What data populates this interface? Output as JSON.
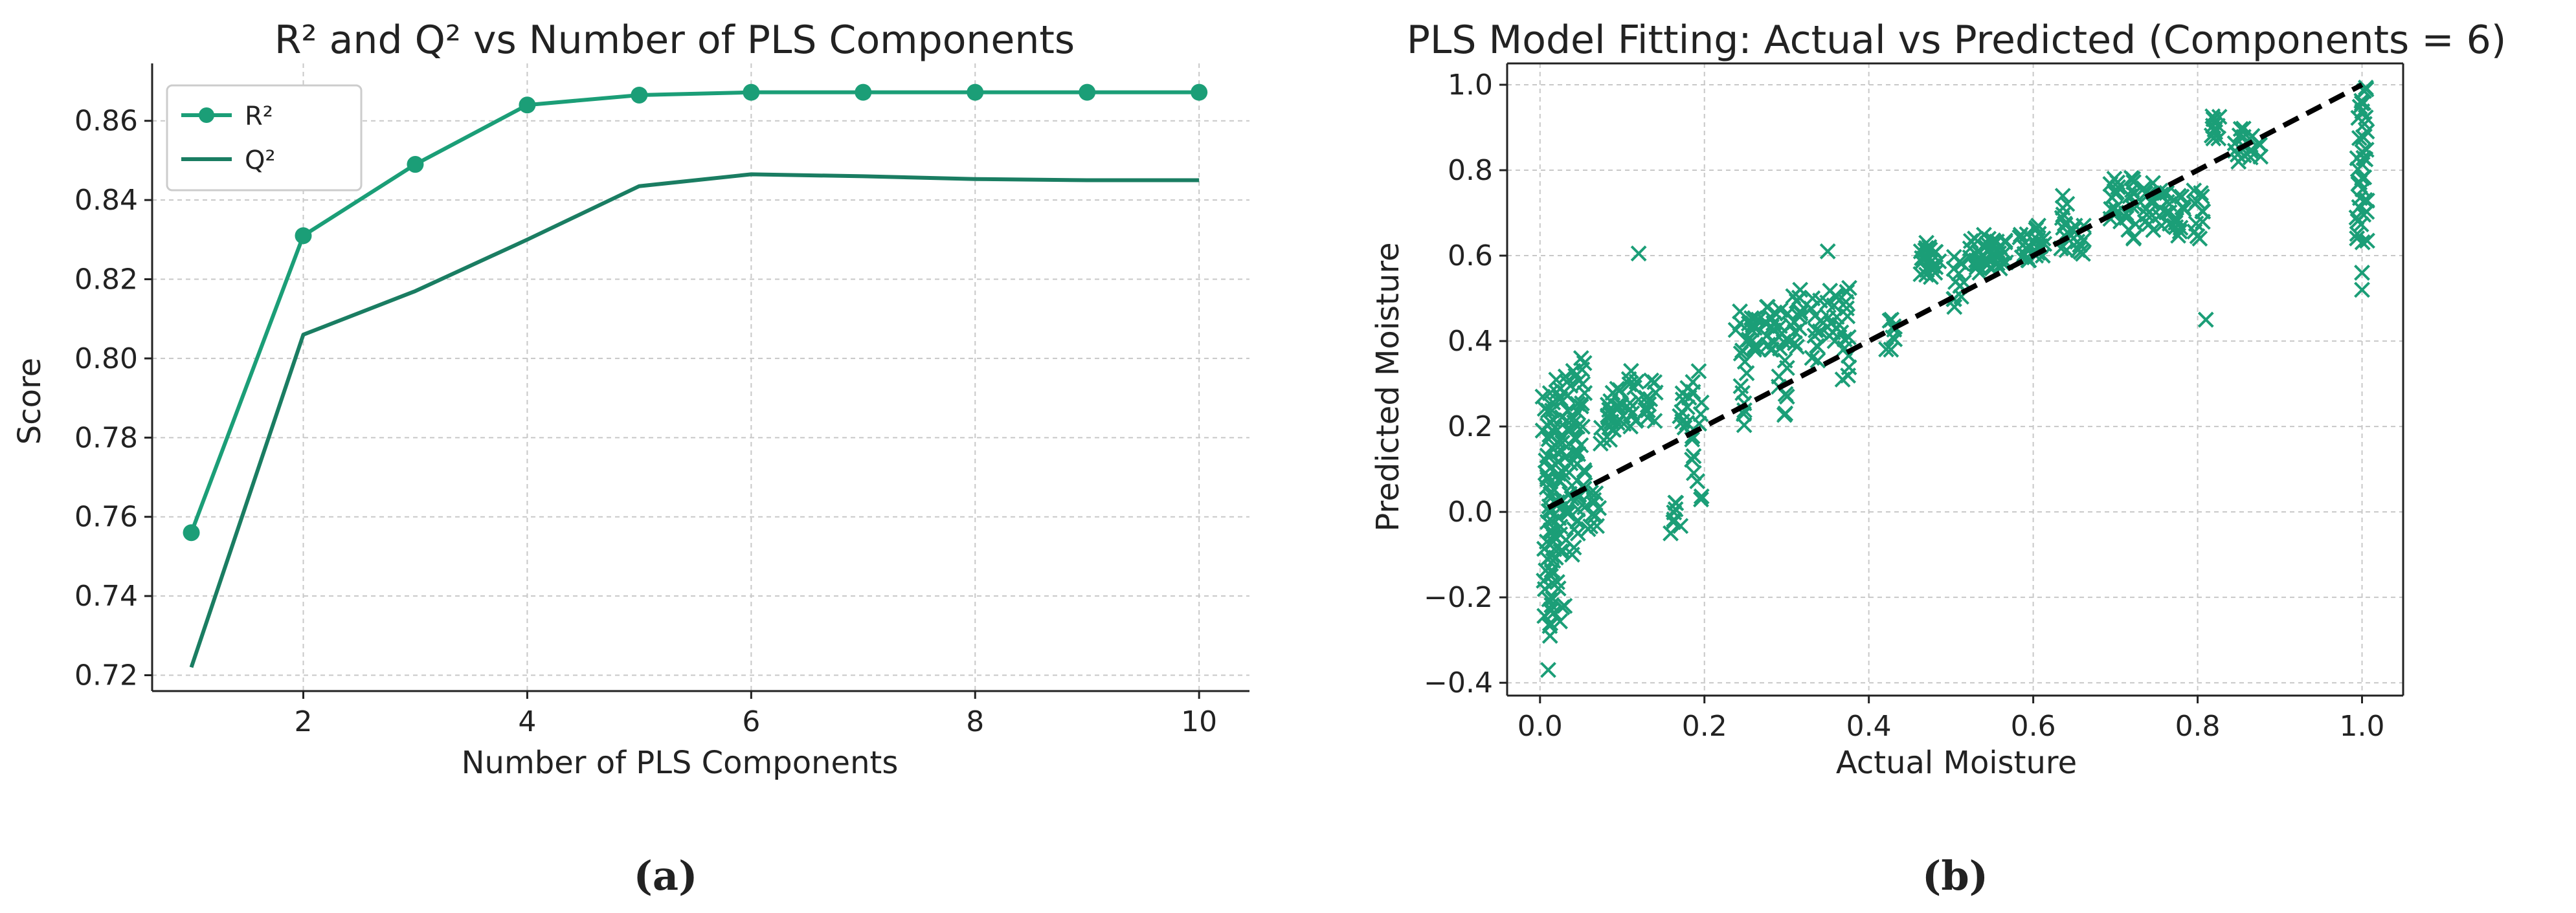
{
  "chart_data": [
    {
      "type": "line",
      "title": "R² and Q² vs Number of PLS Components",
      "xlabel": "Number of PLS Components",
      "ylabel": "Score",
      "xlim": [
        0.65,
        10.45
      ],
      "ylim": [
        0.716,
        0.8745
      ],
      "xticks": [
        2,
        4,
        6,
        8,
        10
      ],
      "yticks": [
        0.72,
        0.74,
        0.76,
        0.78,
        0.8,
        0.82,
        0.84,
        0.86
      ],
      "ytick_labels": [
        "0.72",
        "0.74",
        "0.76",
        "0.78",
        "0.80",
        "0.82",
        "0.84",
        "0.86"
      ],
      "grid": true,
      "legend_position": "top-left",
      "x": [
        1,
        2,
        3,
        4,
        5,
        6,
        7,
        8,
        9,
        10
      ],
      "series": [
        {
          "name": "R²",
          "color": "#1b9e77",
          "marker": "circle",
          "values": [
            0.756,
            0.831,
            0.849,
            0.864,
            0.8665,
            0.8672,
            0.8672,
            0.8672,
            0.8672,
            0.8672
          ]
        },
        {
          "name": "Q²",
          "color": "#1a7d62",
          "marker": "none",
          "values": [
            0.722,
            0.806,
            0.817,
            0.83,
            0.8435,
            0.8465,
            0.846,
            0.8453,
            0.845,
            0.845
          ]
        }
      ],
      "panel_label": "(a)"
    },
    {
      "type": "scatter",
      "title": "PLS Model Fitting: Actual vs Predicted (Components = 6)",
      "xlabel": "Actual Moisture",
      "ylabel": "Predicted Moisture",
      "xlim": [
        -0.04,
        1.05
      ],
      "ylim": [
        -0.43,
        1.05
      ],
      "xticks": [
        0.0,
        0.2,
        0.4,
        0.6,
        0.8,
        1.0
      ],
      "yticks": [
        -0.4,
        -0.2,
        0.0,
        0.2,
        0.4,
        0.6,
        0.8,
        1.0
      ],
      "xtick_labels": [
        "0.0",
        "0.2",
        "0.4",
        "0.6",
        "0.8",
        "1.0"
      ],
      "ytick_labels": [
        "−0.4",
        "−0.2",
        "0.0",
        "0.2",
        "0.4",
        "0.6",
        "0.8",
        "1.0"
      ],
      "grid": true,
      "marker": "x",
      "color": "#1b9e77",
      "reference_line": {
        "x": [
          0.01,
          1.0
        ],
        "y": [
          0.01,
          1.0
        ],
        "style": "dashed",
        "color": "#000000"
      },
      "clusters": [
        {
          "x": 0.01,
          "y_min": -0.29,
          "y_max": 0.28,
          "n": 45
        },
        {
          "x": 0.02,
          "y_min": -0.26,
          "y_max": 0.31,
          "n": 32
        },
        {
          "x": 0.03,
          "y_min": -0.1,
          "y_max": 0.32,
          "n": 24
        },
        {
          "x": 0.04,
          "y_min": -0.1,
          "y_max": 0.33,
          "n": 22
        },
        {
          "x": 0.05,
          "y_min": -0.02,
          "y_max": 0.35,
          "n": 22
        },
        {
          "x": 0.065,
          "y_min": -0.05,
          "y_max": 0.05,
          "n": 10
        },
        {
          "x": 0.08,
          "y_min": 0.16,
          "y_max": 0.26,
          "n": 12
        },
        {
          "x": 0.095,
          "y_min": 0.19,
          "y_max": 0.29,
          "n": 12
        },
        {
          "x": 0.115,
          "y_min": 0.2,
          "y_max": 0.33,
          "n": 12
        },
        {
          "x": 0.135,
          "y_min": 0.21,
          "y_max": 0.31,
          "n": 10
        },
        {
          "x": 0.165,
          "y_min": -0.05,
          "y_max": 0.03,
          "n": 8
        },
        {
          "x": 0.175,
          "y_min": 0.19,
          "y_max": 0.29,
          "n": 10
        },
        {
          "x": 0.19,
          "y_min": 0.02,
          "y_max": 0.33,
          "n": 14
        },
        {
          "x": 0.245,
          "y_min": 0.2,
          "y_max": 0.47,
          "n": 14
        },
        {
          "x": 0.26,
          "y_min": 0.38,
          "y_max": 0.46,
          "n": 14
        },
        {
          "x": 0.28,
          "y_min": 0.38,
          "y_max": 0.48,
          "n": 14
        },
        {
          "x": 0.295,
          "y_min": 0.22,
          "y_max": 0.48,
          "n": 14
        },
        {
          "x": 0.31,
          "y_min": 0.38,
          "y_max": 0.52,
          "n": 14
        },
        {
          "x": 0.335,
          "y_min": 0.35,
          "y_max": 0.5,
          "n": 12
        },
        {
          "x": 0.355,
          "y_min": 0.4,
          "y_max": 0.52,
          "n": 12
        },
        {
          "x": 0.37,
          "y_min": 0.31,
          "y_max": 0.53,
          "n": 14
        },
        {
          "x": 0.425,
          "y_min": 0.38,
          "y_max": 0.45,
          "n": 8
        },
        {
          "x": 0.47,
          "y_min": 0.55,
          "y_max": 0.63,
          "n": 12
        },
        {
          "x": 0.48,
          "y_min": 0.56,
          "y_max": 0.62,
          "n": 10
        },
        {
          "x": 0.51,
          "y_min": 0.48,
          "y_max": 0.6,
          "n": 12
        },
        {
          "x": 0.53,
          "y_min": 0.56,
          "y_max": 0.64,
          "n": 12
        },
        {
          "x": 0.545,
          "y_min": 0.57,
          "y_max": 0.65,
          "n": 14
        },
        {
          "x": 0.56,
          "y_min": 0.57,
          "y_max": 0.64,
          "n": 14
        },
        {
          "x": 0.59,
          "y_min": 0.58,
          "y_max": 0.65,
          "n": 12
        },
        {
          "x": 0.61,
          "y_min": 0.6,
          "y_max": 0.67,
          "n": 12
        },
        {
          "x": 0.635,
          "y_min": 0.61,
          "y_max": 0.74,
          "n": 12
        },
        {
          "x": 0.655,
          "y_min": 0.6,
          "y_max": 0.67,
          "n": 10
        },
        {
          "x": 0.7,
          "y_min": 0.68,
          "y_max": 0.78,
          "n": 14
        },
        {
          "x": 0.72,
          "y_min": 0.64,
          "y_max": 0.79,
          "n": 14
        },
        {
          "x": 0.74,
          "y_min": 0.66,
          "y_max": 0.77,
          "n": 12
        },
        {
          "x": 0.76,
          "y_min": 0.67,
          "y_max": 0.76,
          "n": 12
        },
        {
          "x": 0.78,
          "y_min": 0.64,
          "y_max": 0.74,
          "n": 12
        },
        {
          "x": 0.8,
          "y_min": 0.64,
          "y_max": 0.76,
          "n": 12
        },
        {
          "x": 0.82,
          "y_min": 0.87,
          "y_max": 0.93,
          "n": 10
        },
        {
          "x": 0.85,
          "y_min": 0.82,
          "y_max": 0.9,
          "n": 10
        },
        {
          "x": 0.87,
          "y_min": 0.83,
          "y_max": 0.88,
          "n": 8
        },
        {
          "x": 1.0,
          "y_min": 0.63,
          "y_max": 1.0,
          "n": 40
        }
      ],
      "outliers": [
        {
          "x": 0.01,
          "y": -0.37
        },
        {
          "x": 0.12,
          "y": 0.605
        },
        {
          "x": 0.35,
          "y": 0.61
        },
        {
          "x": 0.81,
          "y": 0.45
        },
        {
          "x": 1.0,
          "y": 0.52
        },
        {
          "x": 1.0,
          "y": 0.56
        },
        {
          "x": 0.03,
          "y": -0.22
        },
        {
          "x": 0.05,
          "y": 0.36
        }
      ],
      "panel_label": "(b)"
    }
  ]
}
